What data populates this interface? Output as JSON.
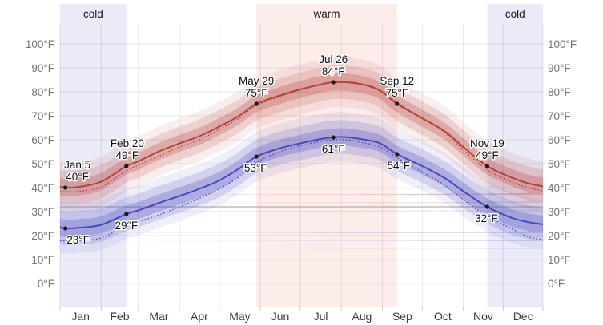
{
  "chart_data": {
    "type": "line",
    "title": "",
    "x_axis": {
      "tick_labels": [
        "Jan",
        "Feb",
        "Mar",
        "Apr",
        "May",
        "Jun",
        "Jul",
        "Aug",
        "Sep",
        "Oct",
        "Nov",
        "Dec"
      ],
      "month_start_days": [
        0,
        31,
        59,
        90,
        120,
        151,
        181,
        212,
        243,
        273,
        304,
        334,
        364
      ]
    },
    "y_axis": {
      "min": 0,
      "max": 100,
      "step": 10,
      "suffix": "°F",
      "sides": [
        "left",
        "right"
      ],
      "label_color": "#757575"
    },
    "freezing_line_f": 32,
    "freezing_line_color": "#9e9e9e",
    "grid_color": "rgba(0,0,0,0.09)",
    "seasons": [
      {
        "label": "cold",
        "start_day": 0,
        "end_day": 50,
        "color": "#ebebf8"
      },
      {
        "label": "warm",
        "start_day": 148,
        "end_day": 254,
        "color": "#fcecea"
      },
      {
        "label": "cold",
        "start_day": 322,
        "end_day": 364,
        "color": "#ebebf8"
      }
    ],
    "band_halfwidths_f": [
      10.4,
      7.0,
      3.6
    ],
    "band_opacities": [
      0.09,
      0.17,
      0.27
    ],
    "series": [
      {
        "name": "average-high",
        "color": "#b5423d",
        "style": "solid",
        "band": true,
        "points": [
          [
            0,
            40.5
          ],
          [
            4,
            40
          ],
          [
            15,
            40.4
          ],
          [
            31,
            42.5
          ],
          [
            50,
            49
          ],
          [
            59,
            51
          ],
          [
            74,
            55
          ],
          [
            90,
            58.5
          ],
          [
            105,
            61.5
          ],
          [
            120,
            65.5
          ],
          [
            135,
            70
          ],
          [
            148,
            75
          ],
          [
            166,
            78.5
          ],
          [
            181,
            81
          ],
          [
            196,
            83
          ],
          [
            206,
            84
          ],
          [
            221,
            83.7
          ],
          [
            235,
            82
          ],
          [
            243,
            79.8
          ],
          [
            254,
            75
          ],
          [
            273,
            69
          ],
          [
            290,
            63.5
          ],
          [
            304,
            57
          ],
          [
            322,
            49
          ],
          [
            340,
            44.3
          ],
          [
            353,
            41.8
          ],
          [
            364,
            40.6
          ]
        ]
      },
      {
        "name": "average-high-dotted",
        "color": "#b5423d",
        "style": "dotted",
        "band": false,
        "points": [
          [
            0,
            38.3
          ],
          [
            15,
            38.5
          ],
          [
            31,
            40.3
          ],
          [
            50,
            47
          ],
          [
            74,
            53
          ],
          [
            90,
            57
          ],
          [
            105,
            60
          ],
          [
            120,
            64.3
          ],
          [
            135,
            69
          ],
          [
            148,
            74.3
          ],
          [
            166,
            78
          ],
          [
            181,
            80.8
          ],
          [
            196,
            83
          ],
          [
            206,
            84.2
          ],
          [
            221,
            84
          ],
          [
            235,
            82.3
          ],
          [
            243,
            80
          ],
          [
            254,
            75.5
          ],
          [
            273,
            69
          ],
          [
            290,
            63
          ],
          [
            304,
            55.8
          ],
          [
            322,
            47.5
          ],
          [
            340,
            42.5
          ],
          [
            353,
            40
          ],
          [
            364,
            38.6
          ]
        ]
      },
      {
        "name": "average-low",
        "color": "#4a49bb",
        "style": "solid",
        "band": true,
        "points": [
          [
            0,
            23.6
          ],
          [
            4,
            23
          ],
          [
            15,
            23.3
          ],
          [
            31,
            24.5
          ],
          [
            50,
            29
          ],
          [
            59,
            30.5
          ],
          [
            74,
            33.5
          ],
          [
            90,
            36.5
          ],
          [
            105,
            39.5
          ],
          [
            120,
            43
          ],
          [
            135,
            48
          ],
          [
            148,
            53
          ],
          [
            166,
            56.5
          ],
          [
            181,
            58.5
          ],
          [
            196,
            60.3
          ],
          [
            206,
            61
          ],
          [
            216,
            61.1
          ],
          [
            235,
            59.5
          ],
          [
            243,
            58
          ],
          [
            254,
            54
          ],
          [
            273,
            49
          ],
          [
            290,
            44
          ],
          [
            304,
            38.5
          ],
          [
            322,
            32
          ],
          [
            340,
            27.5
          ],
          [
            353,
            25.6
          ],
          [
            364,
            24.7
          ]
        ]
      },
      {
        "name": "average-low-dotted",
        "color": "#4a49bb",
        "style": "dotted",
        "band": false,
        "points": [
          [
            0,
            17.8
          ],
          [
            15,
            18
          ],
          [
            31,
            19
          ],
          [
            50,
            24
          ],
          [
            74,
            28.5
          ],
          [
            90,
            32
          ],
          [
            105,
            35.5
          ],
          [
            120,
            39.5
          ],
          [
            135,
            44.5
          ],
          [
            148,
            50.5
          ],
          [
            166,
            55
          ],
          [
            181,
            57.5
          ],
          [
            196,
            59.3
          ],
          [
            206,
            60
          ],
          [
            216,
            60
          ],
          [
            235,
            58
          ],
          [
            243,
            56.5
          ],
          [
            254,
            52.5
          ],
          [
            273,
            46.5
          ],
          [
            290,
            41
          ],
          [
            304,
            35
          ],
          [
            322,
            28
          ],
          [
            340,
            23
          ],
          [
            353,
            19.5
          ],
          [
            364,
            18.2
          ]
        ]
      }
    ],
    "annotations": [
      {
        "series": "high",
        "date": "Jan 5",
        "value": "40°F",
        "day": 4,
        "f": 40,
        "dx": 15,
        "placement": "above"
      },
      {
        "series": "high",
        "date": "Feb 20",
        "value": "49°F",
        "day": 50,
        "f": 49,
        "dx": 1,
        "placement": "above"
      },
      {
        "series": "high",
        "date": "May 29",
        "value": "75°F",
        "day": 148,
        "f": 75,
        "dx": 0,
        "placement": "above"
      },
      {
        "series": "high",
        "date": "Jul 26",
        "value": "84°F",
        "day": 206,
        "f": 84,
        "dx": 0,
        "placement": "above"
      },
      {
        "series": "high",
        "date": "Sep 12",
        "value": "75°F",
        "day": 254,
        "f": 75,
        "dx": 0,
        "placement": "above"
      },
      {
        "series": "high",
        "date": "Nov 19",
        "value": "49°F",
        "day": 322,
        "f": 49,
        "dx": 0,
        "placement": "above"
      },
      {
        "series": "low",
        "value": "23°F",
        "day": 4,
        "f": 23,
        "dx": 16,
        "placement": "below"
      },
      {
        "series": "low",
        "value": "29°F",
        "day": 50,
        "f": 29,
        "dx": 0,
        "placement": "below"
      },
      {
        "series": "low",
        "value": "53°F",
        "day": 148,
        "f": 53,
        "dx": -1,
        "placement": "below"
      },
      {
        "series": "low",
        "value": "61°F",
        "day": 206,
        "f": 61,
        "dx": 0,
        "placement": "below"
      },
      {
        "series": "low",
        "value": "54°F",
        "day": 254,
        "f": 54,
        "dx": 2,
        "placement": "below"
      },
      {
        "series": "low",
        "value": "32°F",
        "day": 322,
        "f": 32,
        "dx": -1,
        "placement": "below"
      }
    ],
    "text_colors": {
      "season_label": "#1a1a1a",
      "month_label": "#3c3c3c",
      "annotation": "#111111"
    }
  }
}
